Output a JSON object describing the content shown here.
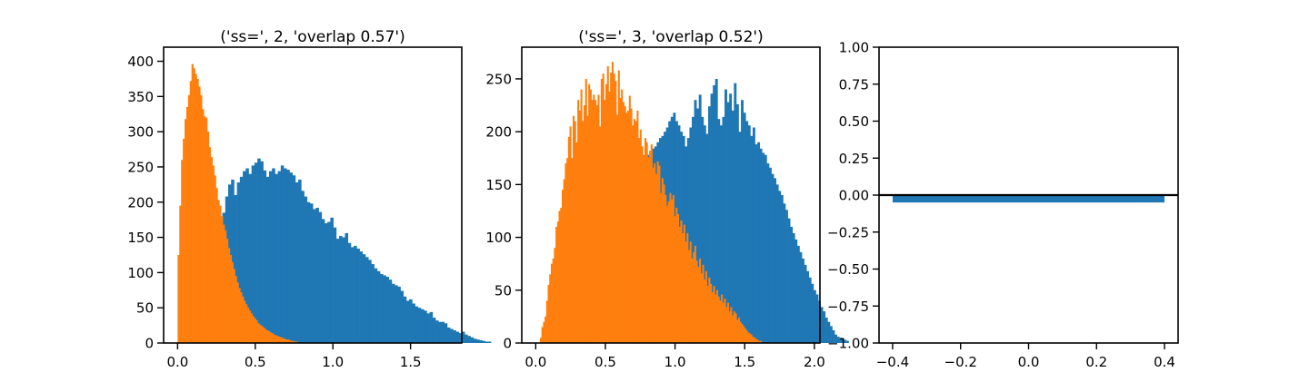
{
  "chart_data": [
    {
      "type": "histogram",
      "title": "('ss=', 2, 'overlap 0.57')",
      "xlim": [
        -0.09,
        1.83
      ],
      "ylim": [
        0,
        420
      ],
      "xticks": [
        0.0,
        0.5,
        1.0,
        1.5
      ],
      "xtick_labels": [
        "0.0",
        "0.5",
        "1.0",
        "1.5"
      ],
      "yticks": [
        0,
        50,
        100,
        150,
        200,
        250,
        300,
        350,
        400
      ],
      "ytick_labels": [
        "0",
        "50",
        "100",
        "150",
        "200",
        "250",
        "300",
        "350",
        "400"
      ],
      "series": [
        {
          "color": "#1f77b4",
          "bin_start": 0.1,
          "bin_width": 0.0188,
          "counts": [
            6,
            12,
            22,
            34,
            48,
            66,
            88,
            110,
            135,
            160,
            185,
            208,
            225,
            232,
            210,
            228,
            236,
            244,
            248,
            240,
            252,
            256,
            262,
            258,
            245,
            236,
            244,
            248,
            240,
            244,
            252,
            248,
            246,
            242,
            238,
            228,
            232,
            216,
            208,
            200,
            198,
            190,
            192,
            186,
            176,
            170,
            172,
            178,
            164,
            148,
            152,
            150,
            156,
            142,
            136,
            138,
            134,
            130,
            126,
            122,
            118,
            112,
            106,
            102,
            98,
            96,
            94,
            90,
            84,
            82,
            80,
            74,
            66,
            60,
            62,
            56,
            52,
            50,
            48,
            46,
            42,
            44,
            36,
            32,
            30,
            30,
            28,
            22,
            20,
            18,
            16,
            14,
            16,
            12,
            10,
            8,
            6,
            5,
            4,
            3,
            2,
            2
          ]
        },
        {
          "color": "#ff7f0e",
          "bin_start": 0.0,
          "bin_width": 0.0112,
          "counts": [
            125,
            195,
            260,
            290,
            318,
            335,
            352,
            372,
            396,
            390,
            382,
            375,
            364,
            352,
            332,
            322,
            320,
            300,
            278,
            264,
            252,
            238,
            220,
            203,
            195,
            180,
            168,
            160,
            148,
            135,
            125,
            115,
            105,
            95,
            86,
            78,
            72,
            66,
            60,
            55,
            50,
            46,
            42,
            38,
            35,
            32,
            28,
            26,
            24,
            22,
            20,
            18,
            17,
            15,
            14,
            12,
            11,
            10,
            9,
            8,
            7,
            6,
            5,
            5,
            4,
            3,
            3,
            2,
            2
          ]
        }
      ]
    },
    {
      "type": "histogram",
      "title": "('ss=', 3, 'overlap 0.52')",
      "xlim": [
        -0.1,
        2.04
      ],
      "ylim": [
        0,
        280
      ],
      "xticks": [
        0.0,
        0.5,
        1.0,
        1.5,
        2.0
      ],
      "xtick_labels": [
        "0.0",
        "0.5",
        "1.0",
        "1.5",
        "2.0"
      ],
      "yticks": [
        0,
        50,
        100,
        150,
        200,
        250
      ],
      "ytick_labels": [
        "0",
        "50",
        "100",
        "150",
        "200",
        "250"
      ],
      "series": [
        {
          "color": "#1f77b4",
          "bin_start": 0.28,
          "bin_width": 0.0168,
          "counts": [
            5,
            8,
            12,
            16,
            22,
            28,
            36,
            44,
            52,
            60,
            68,
            78,
            88,
            96,
            104,
            110,
            118,
            124,
            130,
            136,
            140,
            146,
            150,
            156,
            160,
            164,
            168,
            170,
            172,
            174,
            176,
            178,
            180,
            184,
            186,
            190,
            194,
            196,
            200,
            204,
            210,
            214,
            218,
            210,
            206,
            200,
            196,
            186,
            194,
            204,
            214,
            230,
            222,
            235,
            214,
            206,
            198,
            224,
            236,
            244,
            250,
            212,
            206,
            214,
            240,
            228,
            236,
            220,
            246,
            226,
            200,
            230,
            218,
            210,
            206,
            196,
            204,
            188,
            190,
            184,
            180,
            178,
            170,
            166,
            160,
            156,
            150,
            144,
            140,
            132,
            126,
            118,
            110,
            104,
            98,
            92,
            86,
            80,
            74,
            68,
            62,
            56,
            50,
            46,
            40,
            34,
            30,
            24,
            20,
            16,
            12,
            8,
            6,
            5,
            4,
            3,
            2
          ]
        },
        {
          "color": "#ff7f0e",
          "bin_start": 0.03,
          "bin_width": 0.0112,
          "counts": [
            5,
            15,
            20,
            25,
            40,
            55,
            65,
            75,
            80,
            90,
            110,
            115,
            125,
            128,
            145,
            155,
            170,
            175,
            195,
            205,
            175,
            215,
            210,
            190,
            230,
            220,
            240,
            210,
            225,
            250,
            215,
            245,
            240,
            230,
            235,
            230,
            225,
            235,
            205,
            250,
            255,
            230,
            245,
            262,
            238,
            256,
            266,
            255,
            248,
            216,
            258,
            232,
            240,
            228,
            224,
            218,
            220,
            234,
            222,
            206,
            212,
            210,
            220,
            194,
            202,
            186,
            178,
            194,
            190,
            176,
            182,
            188,
            166,
            170,
            160,
            172,
            168,
            142,
            156,
            150,
            140,
            130,
            134,
            142,
            136,
            140,
            120,
            128,
            122,
            110,
            116,
            104,
            112,
            96,
            104,
            88,
            96,
            80,
            86,
            92,
            78,
            72,
            80,
            66,
            74,
            60,
            68,
            54,
            62,
            56,
            48,
            54,
            46,
            50,
            44,
            40,
            46,
            38,
            42,
            34,
            38,
            30,
            34,
            26,
            30,
            28,
            22,
            24,
            20,
            18,
            16,
            14,
            12,
            10,
            9,
            8,
            6,
            5,
            4,
            3,
            2,
            2
          ]
        }
      ]
    },
    {
      "type": "bar",
      "title": "",
      "xlim": [
        -0.44,
        0.44
      ],
      "ylim": [
        -1.0,
        1.0
      ],
      "xticks": [
        -0.4,
        -0.2,
        0.0,
        0.2,
        0.4
      ],
      "xtick_labels": [
        "−0.4",
        "−0.2",
        "0.0",
        "0.2",
        "0.4"
      ],
      "yticks": [
        -1.0,
        -0.75,
        -0.5,
        -0.25,
        0.0,
        0.25,
        0.5,
        0.75,
        1.0
      ],
      "ytick_labels": [
        "−1.00",
        "−0.75",
        "−0.50",
        "−0.25",
        "0.00",
        "0.25",
        "0.50",
        "0.75",
        "1.00"
      ],
      "bars": [
        {
          "x": 0.0,
          "width": 0.8,
          "value": -0.05,
          "color": "#1f77b4"
        }
      ],
      "hline": {
        "y": 0.0,
        "color": "#000000"
      }
    }
  ]
}
